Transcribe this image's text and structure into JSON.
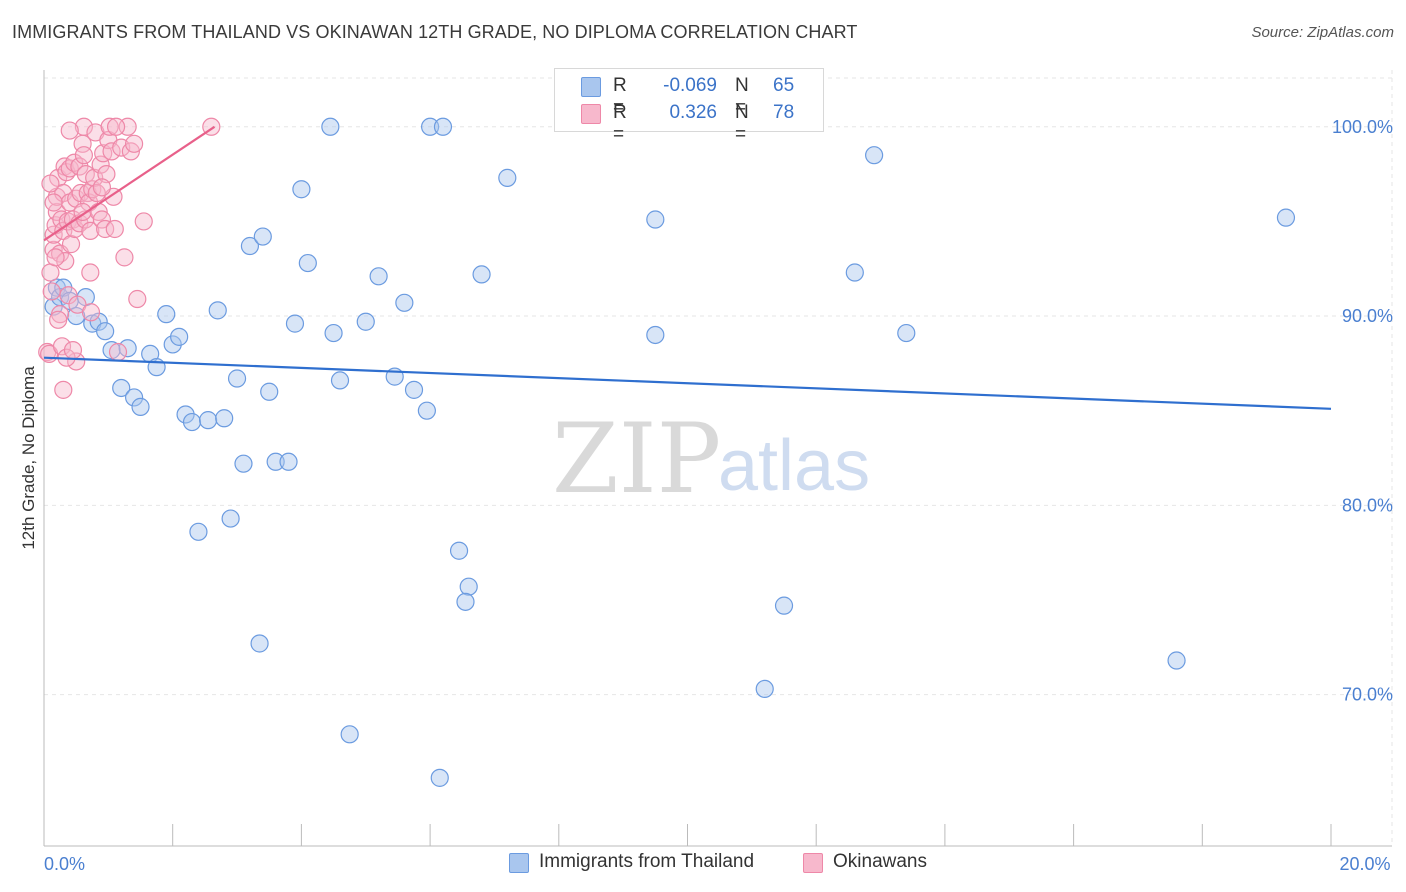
{
  "header": {
    "title": "IMMIGRANTS FROM THAILAND VS OKINAWAN 12TH GRADE, NO DIPLOMA CORRELATION CHART",
    "source": "Source: ZipAtlas.com"
  },
  "legend": {
    "rows": [
      {
        "r_label": "R =",
        "r_value": "-0.069",
        "n_label": "N =",
        "n_value": "65"
      },
      {
        "r_label": "R =",
        "r_value": "0.326",
        "n_label": "N =",
        "n_value": "78"
      }
    ]
  },
  "bottom_legend": {
    "series_a": "Immigrants from Thailand",
    "series_b": "Okinawans"
  },
  "watermark": {
    "zip": "ZIP",
    "atlas": "atlas"
  },
  "colors": {
    "blue_fill": "#a9c6ee",
    "blue_stroke": "#6b9be0",
    "blue_line": "#2f6fcf",
    "pink_fill": "#f7b8cc",
    "pink_stroke": "#ee88a8",
    "pink_line": "#e8608a",
    "grid": "#e6e6e6",
    "tick_text": "#4a7fd0"
  },
  "chart_data": {
    "type": "scatter",
    "title": "IMMIGRANTS FROM THAILAND VS OKINAWAN 12TH GRADE, NO DIPLOMA CORRELATION CHART",
    "xlabel": "",
    "ylabel": "12th Grade, No Diploma",
    "xlim": [
      0,
      20
    ],
    "ylim": [
      62,
      103
    ],
    "x_tick_labels": [
      {
        "value": 0,
        "label": "0.0%"
      },
      {
        "value": 20,
        "label": "20.0%"
      }
    ],
    "x_minor_ticks": [
      2,
      4,
      6,
      8,
      10,
      12,
      14,
      16,
      18
    ],
    "y_ticks": [
      {
        "value": 100,
        "label": "100.0%"
      },
      {
        "value": 90,
        "label": "90.0%"
      },
      {
        "value": 80,
        "label": "80.0%"
      },
      {
        "value": 70,
        "label": "70.0%"
      }
    ],
    "series": [
      {
        "name": "Immigrants from Thailand",
        "color": "blue",
        "trend": {
          "x": [
            0,
            20
          ],
          "y": [
            87.8,
            85.1
          ]
        },
        "points": [
          [
            0.15,
            90.5
          ],
          [
            0.2,
            91.5
          ],
          [
            0.25,
            91.0
          ],
          [
            0.3,
            91.5
          ],
          [
            0.4,
            90.8
          ],
          [
            0.5,
            90.0
          ],
          [
            0.65,
            91.0
          ],
          [
            0.75,
            89.6
          ],
          [
            0.85,
            89.7
          ],
          [
            0.95,
            89.2
          ],
          [
            1.05,
            88.2
          ],
          [
            1.3,
            88.3
          ],
          [
            1.2,
            86.2
          ],
          [
            1.4,
            85.7
          ],
          [
            1.5,
            85.2
          ],
          [
            1.65,
            88.0
          ],
          [
            1.75,
            87.3
          ],
          [
            1.9,
            90.1
          ],
          [
            2.0,
            88.5
          ],
          [
            2.1,
            88.9
          ],
          [
            2.2,
            84.8
          ],
          [
            2.3,
            84.4
          ],
          [
            2.55,
            84.5
          ],
          [
            2.8,
            84.6
          ],
          [
            2.7,
            90.3
          ],
          [
            3.0,
            86.7
          ],
          [
            3.1,
            82.2
          ],
          [
            3.2,
            93.7
          ],
          [
            3.4,
            94.2
          ],
          [
            3.5,
            86.0
          ],
          [
            3.6,
            82.3
          ],
          [
            3.8,
            82.3
          ],
          [
            2.4,
            78.6
          ],
          [
            2.9,
            79.3
          ],
          [
            3.35,
            72.7
          ],
          [
            3.9,
            89.6
          ],
          [
            4.0,
            96.7
          ],
          [
            4.1,
            92.8
          ],
          [
            4.45,
            100.0
          ],
          [
            4.5,
            89.1
          ],
          [
            4.6,
            86.6
          ],
          [
            4.75,
            67.9
          ],
          [
            5.0,
            89.7
          ],
          [
            5.2,
            92.1
          ],
          [
            5.45,
            86.8
          ],
          [
            5.6,
            90.7
          ],
          [
            5.75,
            86.1
          ],
          [
            5.95,
            85.0
          ],
          [
            6.0,
            100.0
          ],
          [
            6.2,
            100.0
          ],
          [
            6.15,
            65.6
          ],
          [
            6.45,
            77.6
          ],
          [
            6.6,
            75.7
          ],
          [
            6.55,
            74.9
          ],
          [
            6.8,
            92.2
          ],
          [
            7.2,
            97.3
          ],
          [
            9.5,
            95.1
          ],
          [
            9.5,
            89.0
          ],
          [
            11.2,
            70.3
          ],
          [
            11.5,
            74.7
          ],
          [
            12.6,
            92.3
          ],
          [
            12.9,
            98.5
          ],
          [
            13.4,
            89.1
          ],
          [
            17.6,
            71.8
          ],
          [
            19.3,
            95.2
          ]
        ]
      },
      {
        "name": "Okinawans",
        "color": "pink",
        "trend": {
          "x": [
            0,
            2.65
          ],
          "y": [
            94.0,
            100.0
          ]
        },
        "points": [
          [
            0.05,
            88.1
          ],
          [
            0.08,
            88.0
          ],
          [
            0.1,
            92.3
          ],
          [
            0.12,
            91.3
          ],
          [
            0.15,
            93.5
          ],
          [
            0.15,
            94.3
          ],
          [
            0.18,
            94.8
          ],
          [
            0.2,
            95.5
          ],
          [
            0.2,
            96.3
          ],
          [
            0.22,
            97.3
          ],
          [
            0.25,
            93.3
          ],
          [
            0.25,
            90.1
          ],
          [
            0.27,
            95.1
          ],
          [
            0.3,
            94.5
          ],
          [
            0.3,
            96.5
          ],
          [
            0.32,
            97.9
          ],
          [
            0.33,
            92.9
          ],
          [
            0.35,
            97.6
          ],
          [
            0.37,
            95.0
          ],
          [
            0.38,
            91.1
          ],
          [
            0.4,
            97.8
          ],
          [
            0.4,
            96.0
          ],
          [
            0.42,
            93.8
          ],
          [
            0.45,
            95.1
          ],
          [
            0.47,
            98.1
          ],
          [
            0.48,
            94.6
          ],
          [
            0.5,
            96.2
          ],
          [
            0.5,
            87.6
          ],
          [
            0.52,
            90.6
          ],
          [
            0.55,
            97.9
          ],
          [
            0.55,
            94.9
          ],
          [
            0.57,
            96.5
          ],
          [
            0.6,
            99.1
          ],
          [
            0.62,
            98.5
          ],
          [
            0.62,
            100.0
          ],
          [
            0.64,
            95.1
          ],
          [
            0.65,
            97.5
          ],
          [
            0.68,
            96.5
          ],
          [
            0.7,
            96.0
          ],
          [
            0.72,
            94.5
          ],
          [
            0.72,
            92.3
          ],
          [
            0.73,
            90.2
          ],
          [
            0.75,
            96.7
          ],
          [
            0.78,
            97.3
          ],
          [
            0.8,
            99.7
          ],
          [
            0.82,
            96.5
          ],
          [
            0.85,
            95.5
          ],
          [
            0.88,
            98.0
          ],
          [
            0.9,
            95.1
          ],
          [
            0.92,
            98.6
          ],
          [
            0.95,
            94.6
          ],
          [
            0.97,
            97.5
          ],
          [
            1.0,
            99.3
          ],
          [
            1.02,
            100.0
          ],
          [
            1.05,
            98.7
          ],
          [
            1.08,
            96.3
          ],
          [
            1.1,
            94.6
          ],
          [
            1.15,
            88.1
          ],
          [
            1.2,
            98.9
          ],
          [
            1.25,
            93.1
          ],
          [
            1.3,
            100.0
          ],
          [
            1.35,
            98.7
          ],
          [
            1.4,
            99.1
          ],
          [
            1.45,
            90.9
          ],
          [
            1.55,
            95.0
          ],
          [
            0.28,
            88.4
          ],
          [
            0.3,
            86.1
          ],
          [
            0.35,
            87.8
          ],
          [
            0.45,
            88.2
          ],
          [
            0.6,
            95.5
          ],
          [
            0.22,
            89.8
          ],
          [
            0.18,
            93.1
          ],
          [
            0.9,
            96.8
          ],
          [
            1.12,
            100.0
          ],
          [
            2.6,
            100.0
          ],
          [
            0.1,
            97.0
          ],
          [
            0.15,
            96.0
          ],
          [
            0.4,
            99.8
          ]
        ]
      }
    ]
  }
}
